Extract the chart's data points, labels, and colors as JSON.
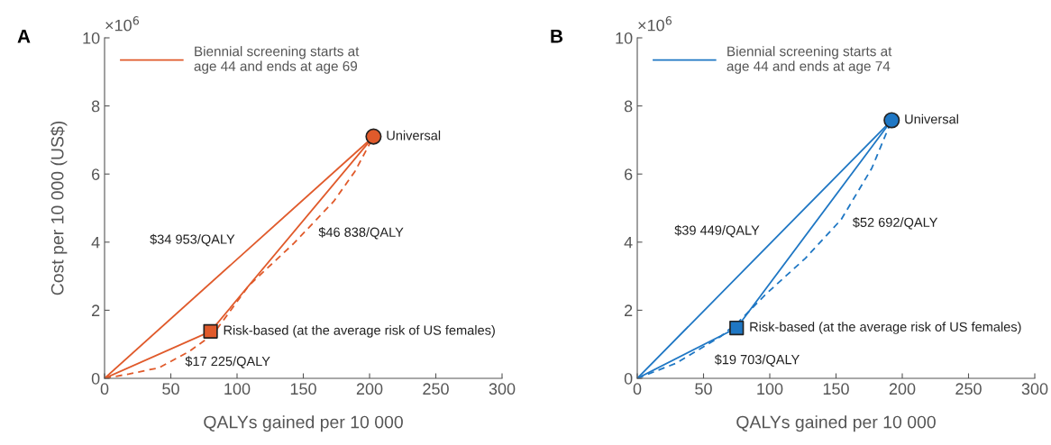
{
  "chart_data": [
    {
      "type": "line",
      "xlabel": "QALYs gained per 10 000",
      "ylabel": "Cost per 10 000 (US$)",
      "xlim": [
        0,
        300
      ],
      "xticks": [
        0,
        50,
        100,
        150,
        200,
        250,
        300
      ],
      "ylim": [
        0,
        10
      ],
      "yticks": [
        0,
        2,
        4,
        6,
        8,
        10
      ],
      "grid": false,
      "legend": "top left",
      "series": [
        {
          "name": "Biennial screening starts at\nage 44 and ends at age 69",
          "color": "#e05a2b",
          "line_style": "solid",
          "x": [
            0,
            203
          ],
          "values": [
            0,
            7.1
          ]
        },
        {
          "color": "#e05a2b",
          "line_style": "solid",
          "x": [
            0,
            80,
            203
          ],
          "values": [
            0,
            1.38,
            7.1
          ]
        },
        {
          "color": "#e05a2b",
          "line_style": "dashed",
          "x": [
            0,
            18.6,
            41,
            64,
            82,
            109,
            143,
            173,
            189,
            203
          ],
          "values": [
            0,
            0.13,
            0.31,
            0.79,
            1.3,
            2.73,
            3.97,
            5.2,
            6.08,
            7.1
          ]
        },
        {
          "type": "scatter",
          "color": "#e05a2b",
          "marker": "circle",
          "x": [
            203
          ],
          "values": [
            7.1
          ]
        },
        {
          "type": "scatter",
          "color": "#e05a2b",
          "marker": "square",
          "x": [
            80
          ],
          "values": [
            1.38
          ]
        }
      ],
      "annotations": [
        "A",
        "×10$^{6}$",
        "$34 953/QALY",
        "$46 838/QALY",
        "$17 225/QALY",
        {
          "text": "Universal",
          "x": 203,
          "y": 7.1
        },
        {
          "text": "Risk-based (at the average risk of US females)",
          "x": 80,
          "y": 1.38
        }
      ]
    },
    {
      "type": "line",
      "xlabel": "QALYs gained per 10 000",
      "xlim": [
        0,
        300
      ],
      "xticks": [
        0,
        50,
        100,
        150,
        200,
        250,
        300
      ],
      "ylim": [
        0,
        10
      ],
      "yticks": [
        0,
        2,
        4,
        6,
        8,
        10
      ],
      "grid": false,
      "legend": "top left",
      "series": [
        {
          "name": "Biennial screening starts at\nage 44 and ends at age 74",
          "color": "#1f77c4",
          "line_style": "solid",
          "x": [
            0,
            192
          ],
          "values": [
            0,
            7.58
          ]
        },
        {
          "color": "#1f77c4",
          "line_style": "solid",
          "x": [
            0,
            75,
            192
          ],
          "values": [
            0,
            1.48,
            7.58
          ]
        },
        {
          "color": "#1f77c4",
          "line_style": "dashed",
          "x": [
            0,
            29,
            63,
            77,
            97,
            127,
            154,
            177,
            192
          ],
          "values": [
            0,
            0.44,
            1.23,
            1.68,
            2.47,
            3.53,
            4.67,
            6.17,
            7.58
          ]
        },
        {
          "type": "scatter",
          "color": "#1f77c4",
          "marker": "circle",
          "x": [
            192
          ],
          "values": [
            7.58
          ]
        },
        {
          "type": "scatter",
          "color": "#1f77c4",
          "marker": "square",
          "x": [
            75
          ],
          "values": [
            1.48
          ]
        }
      ],
      "annotations": [
        "B",
        "×10$^{6}$",
        "$39 449/QALY",
        "$52 692/QALY",
        "$19 703/QALY",
        {
          "text": "Universal",
          "x": 192,
          "y": 7.58
        },
        {
          "text": "Risk-based (at the average risk of US females)",
          "x": 75,
          "y": 1.48
        }
      ]
    }
  ]
}
